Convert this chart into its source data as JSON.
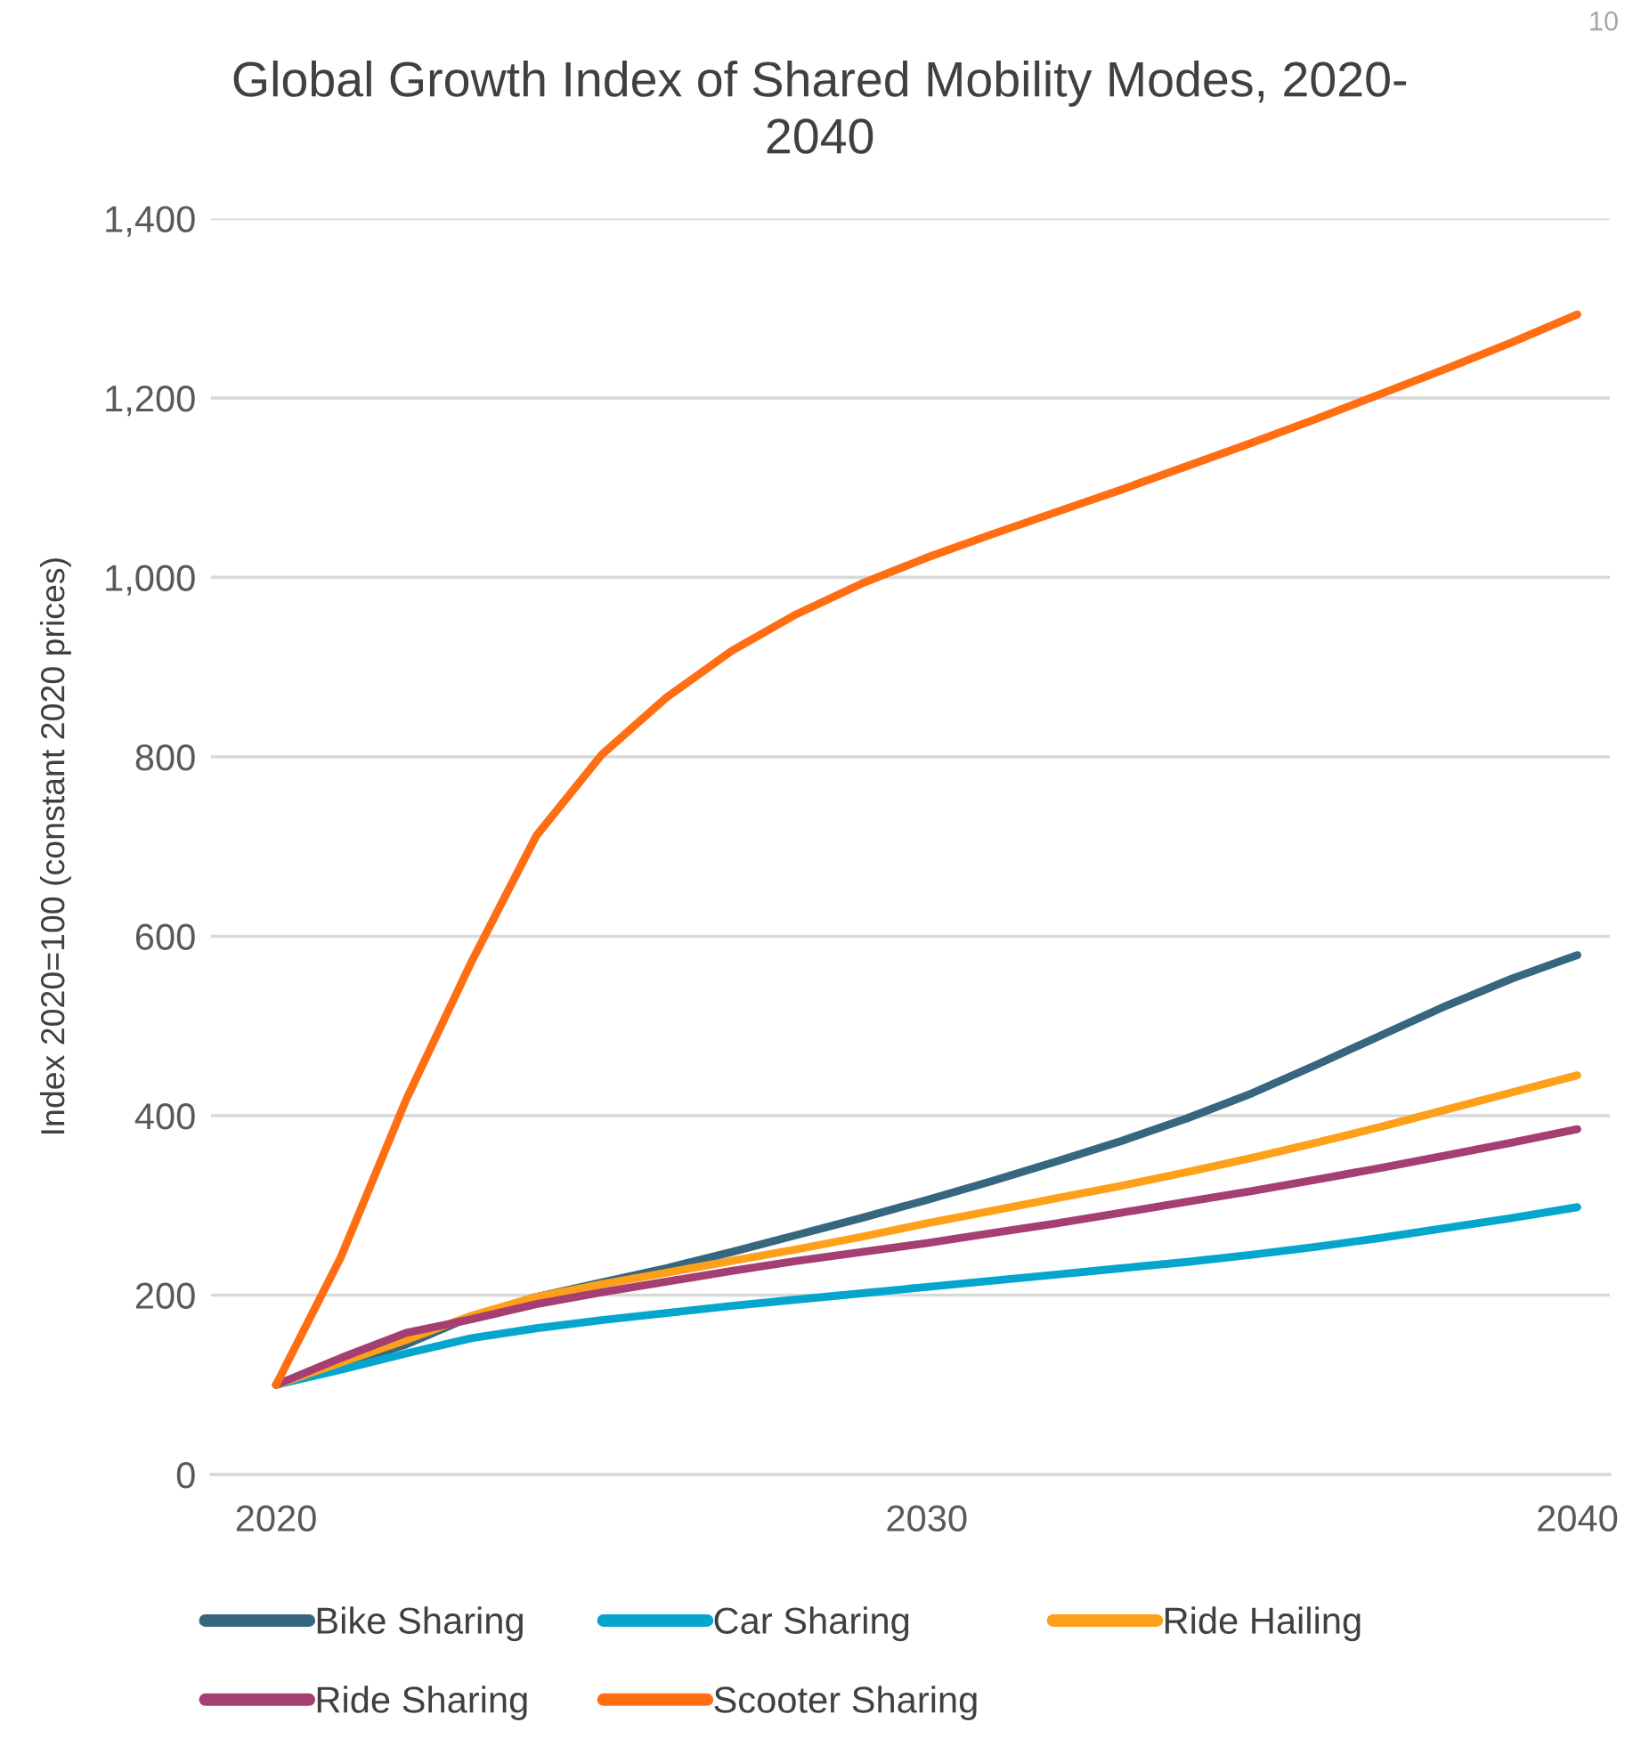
{
  "chart_data": {
    "type": "line",
    "title": "Global Growth Index of Shared Mobility Modes, 2020-2040",
    "ylabel": "Index 2020=100 (constant 2020 prices)",
    "x": [
      2020,
      2021,
      2022,
      2023,
      2024,
      2025,
      2026,
      2027,
      2028,
      2029,
      2030,
      2031,
      2032,
      2033,
      2034,
      2035,
      2036,
      2037,
      2038,
      2039,
      2040
    ],
    "series": [
      {
        "name": "Bike Sharing",
        "color": "#36677f",
        "values": [
          100,
          122,
          145,
          176,
          198,
          214,
          230,
          248,
          267,
          286,
          306,
          327,
          349,
          372,
          397,
          425,
          457,
          490,
          523,
          553,
          579
        ]
      },
      {
        "name": "Car Sharing",
        "color": "#05a6ce",
        "values": [
          100,
          117,
          135,
          152,
          163,
          172,
          180,
          188,
          195,
          202,
          209,
          216,
          223,
          230,
          237,
          245,
          254,
          264,
          275,
          286,
          298
        ]
      },
      {
        "name": "Ride Hailing",
        "color": "#ffa01a",
        "values": [
          100,
          125,
          150,
          177,
          198,
          212,
          225,
          238,
          251,
          265,
          280,
          294,
          308,
          322,
          337,
          353,
          370,
          388,
          407,
          426,
          445
        ]
      },
      {
        "name": "Ride Sharing",
        "color": "#a53e72",
        "values": [
          100,
          130,
          158,
          173,
          190,
          203,
          215,
          227,
          238,
          248,
          258,
          269,
          280,
          292,
          304,
          316,
          329,
          342,
          356,
          370,
          385
        ]
      },
      {
        "name": "Scooter Sharing",
        "color": "#ff6e12",
        "values": [
          100,
          243,
          418,
          571,
          712,
          802,
          866,
          918,
          959,
          993,
          1022,
          1048,
          1073,
          1098,
          1124,
          1150,
          1177,
          1205,
          1233,
          1262,
          1293
        ]
      }
    ],
    "xlim": [
      2019,
      2040.5
    ],
    "xticks": [
      2020,
      2030,
      2040
    ],
    "ylim": [
      0,
      1400
    ],
    "yticks": [
      0,
      200,
      400,
      600,
      800,
      {
        "value": 1000,
        "label": "1,000"
      },
      {
        "value": 1200,
        "label": "1,200"
      },
      {
        "value": 1400,
        "label": "1,400"
      }
    ],
    "grid": "y",
    "legend": "bottom",
    "annotations": [
      "10"
    ]
  }
}
